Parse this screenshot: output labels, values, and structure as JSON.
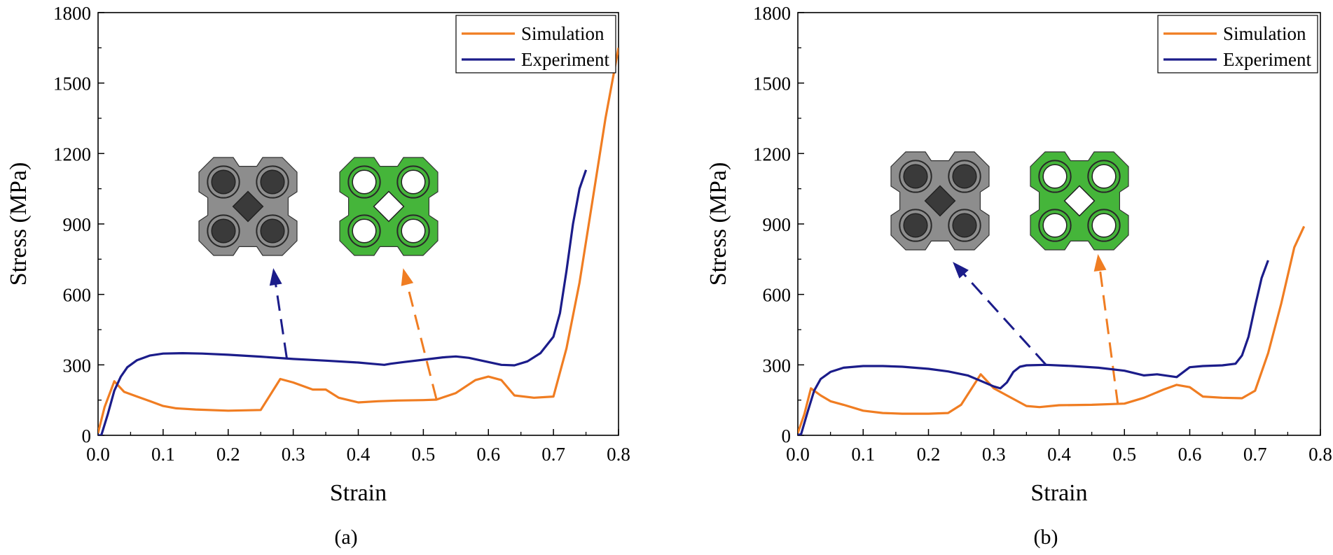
{
  "colors": {
    "simulation": "#F07D22",
    "experiment": "#1B1C8A",
    "lattice_gray": "#8d8d8d",
    "lattice_green": "#45b53a"
  },
  "chart_data": [
    {
      "type": "line",
      "panel_label": "(a)",
      "xlabel": "Strain",
      "ylabel": "Stress (MPa)",
      "xlim": [
        0,
        0.8
      ],
      "ylim": [
        0,
        1800
      ],
      "xticks": [
        "0.0",
        "0.1",
        "0.2",
        "0.3",
        "0.4",
        "0.5",
        "0.6",
        "0.7",
        "0.8"
      ],
      "yticks": [
        "0",
        "300",
        "600",
        "900",
        "1200",
        "1500",
        "1800"
      ],
      "legend": {
        "position": "top-right",
        "entries": [
          "Simulation",
          "Experiment"
        ]
      },
      "series": [
        {
          "name": "Simulation",
          "color_key": "simulation",
          "x": [
            0.0,
            0.01,
            0.025,
            0.04,
            0.06,
            0.08,
            0.1,
            0.12,
            0.15,
            0.2,
            0.25,
            0.28,
            0.3,
            0.33,
            0.35,
            0.37,
            0.4,
            0.43,
            0.46,
            0.5,
            0.52,
            0.55,
            0.58,
            0.6,
            0.62,
            0.64,
            0.67,
            0.7,
            0.72,
            0.74,
            0.76,
            0.78,
            0.8
          ],
          "y": [
            10,
            120,
            230,
            185,
            165,
            145,
            125,
            115,
            110,
            105,
            108,
            240,
            225,
            195,
            195,
            160,
            140,
            145,
            148,
            150,
            152,
            180,
            235,
            250,
            235,
            170,
            160,
            165,
            370,
            650,
            1000,
            1350,
            1650
          ]
        },
        {
          "name": "Experiment",
          "color_key": "experiment",
          "x": [
            0.0,
            0.005,
            0.015,
            0.025,
            0.035,
            0.045,
            0.06,
            0.08,
            0.1,
            0.13,
            0.16,
            0.2,
            0.25,
            0.3,
            0.35,
            0.4,
            0.42,
            0.44,
            0.45,
            0.47,
            0.5,
            0.53,
            0.55,
            0.57,
            0.6,
            0.62,
            0.64,
            0.66,
            0.68,
            0.7,
            0.71,
            0.72,
            0.73,
            0.74,
            0.75
          ],
          "y": [
            0,
            0,
            90,
            190,
            250,
            290,
            320,
            340,
            348,
            350,
            348,
            343,
            335,
            325,
            318,
            310,
            305,
            300,
            305,
            312,
            322,
            332,
            336,
            330,
            312,
            300,
            298,
            315,
            350,
            420,
            520,
            700,
            900,
            1050,
            1130
          ]
        }
      ],
      "annotations": [
        {
          "kind": "arrow",
          "color_key": "experiment",
          "from": [
            0.29,
            330
          ],
          "to": [
            0.27,
            700
          ]
        },
        {
          "kind": "arrow",
          "color_key": "simulation",
          "from": [
            0.52,
            155
          ],
          "to": [
            0.47,
            700
          ]
        }
      ]
    },
    {
      "type": "line",
      "panel_label": "(b)",
      "xlabel": "Strain",
      "ylabel": "Stress (MPa)",
      "xlim": [
        0,
        0.8
      ],
      "ylim": [
        0,
        1800
      ],
      "xticks": [
        "0.0",
        "0.1",
        "0.2",
        "0.3",
        "0.4",
        "0.5",
        "0.6",
        "0.7",
        "0.8"
      ],
      "yticks": [
        "0",
        "300",
        "600",
        "900",
        "1200",
        "1500",
        "1800"
      ],
      "legend": {
        "position": "top-right",
        "entries": [
          "Simulation",
          "Experiment"
        ]
      },
      "series": [
        {
          "name": "Simulation",
          "color_key": "simulation",
          "x": [
            0.0,
            0.01,
            0.02,
            0.035,
            0.05,
            0.07,
            0.1,
            0.13,
            0.16,
            0.2,
            0.23,
            0.25,
            0.28,
            0.3,
            0.32,
            0.35,
            0.37,
            0.4,
            0.45,
            0.5,
            0.53,
            0.56,
            0.58,
            0.6,
            0.62,
            0.65,
            0.68,
            0.7,
            0.72,
            0.74,
            0.76,
            0.775
          ],
          "y": [
            10,
            90,
            200,
            170,
            145,
            130,
            105,
            95,
            92,
            92,
            95,
            130,
            260,
            200,
            170,
            125,
            120,
            128,
            130,
            135,
            160,
            195,
            215,
            205,
            165,
            160,
            158,
            190,
            350,
            560,
            800,
            890
          ]
        },
        {
          "name": "Experiment",
          "color_key": "experiment",
          "x": [
            0.0,
            0.005,
            0.015,
            0.025,
            0.035,
            0.05,
            0.07,
            0.1,
            0.13,
            0.16,
            0.2,
            0.23,
            0.26,
            0.28,
            0.3,
            0.31,
            0.32,
            0.33,
            0.34,
            0.35,
            0.38,
            0.42,
            0.46,
            0.5,
            0.53,
            0.55,
            0.58,
            0.6,
            0.62,
            0.65,
            0.67,
            0.68,
            0.69,
            0.7,
            0.71,
            0.72
          ],
          "y": [
            0,
            5,
            100,
            190,
            240,
            270,
            288,
            295,
            295,
            292,
            283,
            272,
            255,
            232,
            208,
            200,
            225,
            270,
            292,
            298,
            300,
            295,
            288,
            275,
            255,
            260,
            248,
            290,
            295,
            298,
            305,
            340,
            420,
            550,
            670,
            745
          ]
        }
      ],
      "annotations": [
        {
          "kind": "arrow",
          "color_key": "experiment",
          "from": [
            0.38,
            300
          ],
          "to": [
            0.24,
            730
          ]
        },
        {
          "kind": "arrow",
          "color_key": "simulation",
          "from": [
            0.49,
            130
          ],
          "to": [
            0.46,
            760
          ]
        }
      ]
    }
  ]
}
